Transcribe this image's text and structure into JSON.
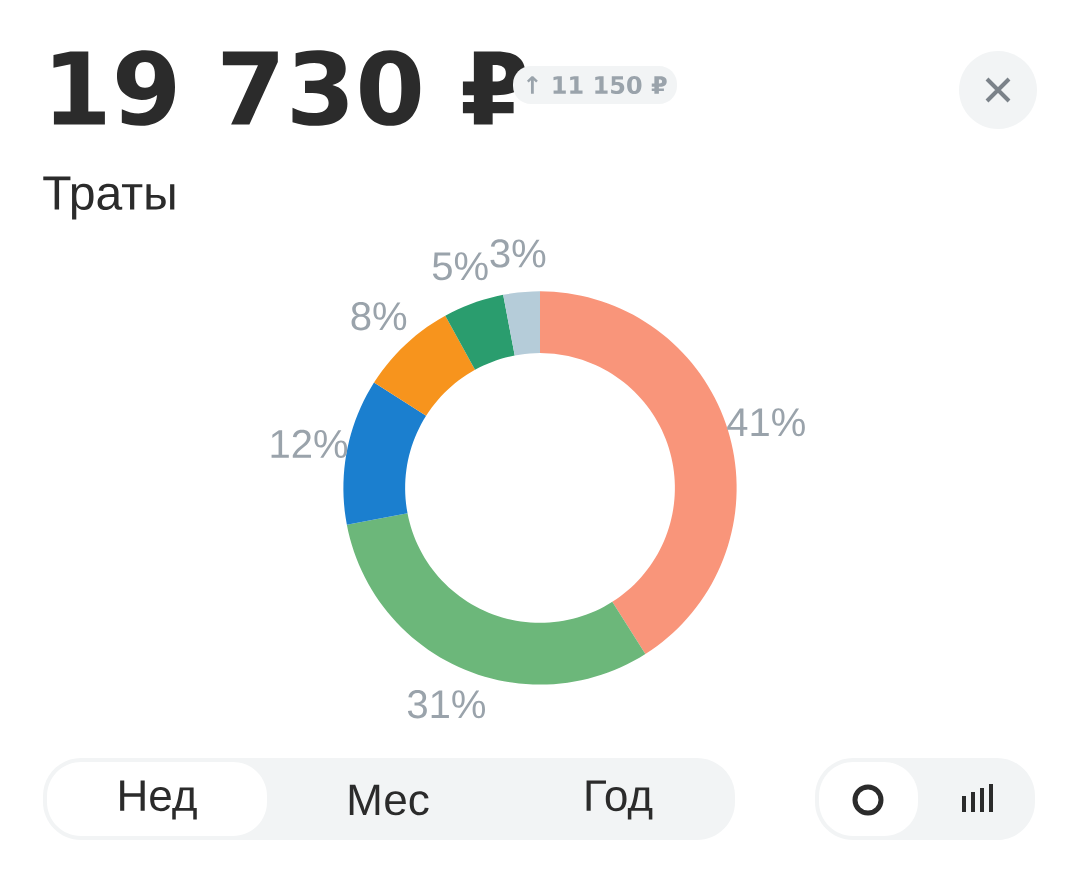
{
  "chart_data": {
    "type": "donut",
    "title": "19 730 ₽",
    "subtitle": "Траты",
    "annotations": [
      "↑ 11 150 ₽",
      "Нед",
      "Мес",
      "Год"
    ],
    "categories": [
      null,
      null,
      null,
      null,
      null,
      null
    ],
    "values": [
      41,
      31,
      12,
      8,
      5,
      3
    ],
    "colors": [
      "#f9957a",
      "#6cb77a",
      "#1b7fcf",
      "#f7941d",
      "#2a9d6e",
      "#b5ccd9"
    ],
    "value_labels": [
      "41%",
      "31%",
      "12%",
      "8%",
      "5%",
      "3%"
    ]
  }
}
